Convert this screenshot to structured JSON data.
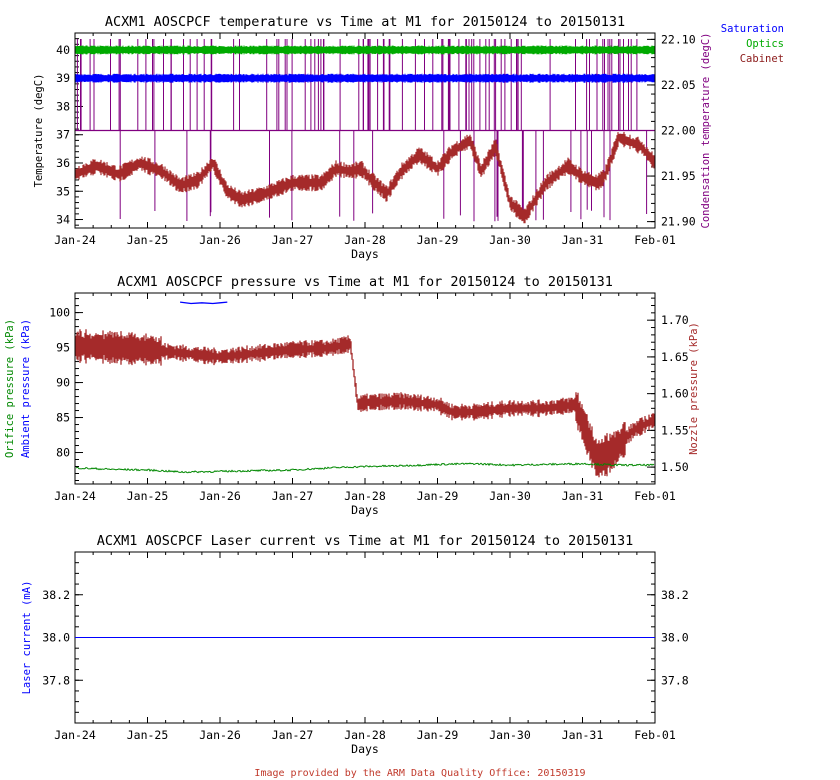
{
  "footer": "Image provided by the ARM Data Quality Office: 20150319",
  "x_axis": {
    "label": "Days",
    "ticks": [
      "Jan-24",
      "Jan-25",
      "Jan-26",
      "Jan-27",
      "Jan-28",
      "Jan-29",
      "Jan-30",
      "Jan-31",
      "Feb-01"
    ]
  },
  "legend": [
    {
      "name": "Saturation",
      "color": "#0000ff"
    },
    {
      "name": "Optics",
      "color": "#00aa00"
    },
    {
      "name": "Cabinet",
      "color": "#8b1a1a"
    }
  ],
  "colors": {
    "saturation": "#0000ff",
    "optics": "#00aa00",
    "cabinet": "#a52a2a",
    "condensation": "#800080",
    "orifice": "#008800",
    "ambient": "#0000ff",
    "nozzle": "#a52a2a",
    "laser": "#0000ff",
    "footer": "#c0392b"
  },
  "chart_data": [
    {
      "type": "line",
      "title": "ACXM1 AOSCPCF temperature vs Time at M1 for 20150124 to 20150131",
      "xlabel": "Days",
      "xlim": [
        0,
        8
      ],
      "ylabel": "Temperature (degC)",
      "ylim": [
        33.7,
        40.6
      ],
      "yticks": [
        34,
        35,
        36,
        37,
        38,
        39,
        40
      ],
      "y2label": "Condensation temperature (degC)",
      "y2lim": [
        21.893,
        22.107
      ],
      "y2ticks": [
        "21.90",
        "21.95",
        "22.00",
        "22.05",
        "22.10"
      ],
      "legend_position": "top-right, outside plot",
      "series": [
        {
          "name": "Saturation",
          "axis": "left",
          "x": [
            0,
            8
          ],
          "y": [
            39.0,
            39.0
          ]
        },
        {
          "name": "Optics",
          "axis": "left",
          "x": [
            0,
            8
          ],
          "y": [
            40.0,
            40.0
          ]
        },
        {
          "name": "Cabinet",
          "axis": "left",
          "x": [
            0,
            0.3,
            0.6,
            0.9,
            1.2,
            1.45,
            1.7,
            1.9,
            2.1,
            2.3,
            2.6,
            3.0,
            3.4,
            3.6,
            3.8,
            3.95,
            4.05,
            4.3,
            4.5,
            4.75,
            5.0,
            5.2,
            5.45,
            5.6,
            5.8,
            6.0,
            6.2,
            6.5,
            6.8,
            7.0,
            7.2,
            7.3,
            7.5,
            7.8,
            8.0
          ],
          "y": [
            35.6,
            35.9,
            35.6,
            36.0,
            35.7,
            35.2,
            35.4,
            36.0,
            35.0,
            34.7,
            34.9,
            35.3,
            35.3,
            35.8,
            35.7,
            35.8,
            35.5,
            34.9,
            35.7,
            36.3,
            35.8,
            36.4,
            36.8,
            35.7,
            36.6,
            34.6,
            34.1,
            35.3,
            35.9,
            35.5,
            35.3,
            35.5,
            36.9,
            36.6,
            36.0
          ]
        },
        {
          "name": "Condensation temperature",
          "axis": "right",
          "baseline": 22.0,
          "spikes_to": [
            22.1,
            21.9
          ]
        }
      ]
    },
    {
      "type": "line",
      "title": "ACXM1 AOSCPCF pressure vs Time at M1 for 20150124 to 20150131",
      "xlabel": "Days",
      "xlim": [
        0,
        8
      ],
      "ylabel": "Orifice pressure (kPa)  Ambient pressure (kPa)",
      "ylim": [
        75.5,
        102.8
      ],
      "yticks": [
        80,
        85,
        90,
        95,
        100
      ],
      "y2label": "Nozzle pressure (kPa)",
      "y2lim": [
        1.477,
        1.737
      ],
      "y2ticks": [
        "1.50",
        "1.55",
        "1.60",
        "1.65",
        "1.70"
      ],
      "series": [
        {
          "name": "Orifice pressure",
          "axis": "left",
          "x": [
            0,
            0.5,
            1.0,
            1.5,
            2.0,
            2.5,
            3.0,
            3.5,
            4.0,
            4.5,
            5.0,
            5.5,
            6.0,
            6.5,
            7.0,
            7.5,
            8.0
          ],
          "y": [
            77.8,
            77.6,
            77.5,
            77.2,
            77.3,
            77.4,
            77.5,
            77.8,
            78.0,
            78.1,
            78.3,
            78.4,
            78.2,
            78.3,
            78.4,
            78.2,
            78.2
          ]
        },
        {
          "name": "Ambient pressure",
          "axis": "left",
          "x": [
            1.45,
            1.6,
            1.75,
            1.9,
            2.0,
            2.1
          ],
          "y": [
            101.5,
            101.3,
            101.4,
            101.3,
            101.4,
            101.5
          ]
        },
        {
          "name": "Nozzle pressure",
          "axis": "right",
          "x": [
            0,
            0.5,
            1.0,
            1.5,
            2.0,
            2.5,
            3.0,
            3.5,
            3.8,
            3.9,
            4.0,
            4.5,
            5.0,
            5.2,
            5.5,
            6.0,
            6.5,
            6.9,
            7.0,
            7.2,
            7.4,
            7.7,
            8.0
          ],
          "y": [
            1.665,
            1.663,
            1.66,
            1.655,
            1.65,
            1.655,
            1.66,
            1.662,
            1.668,
            1.585,
            1.588,
            1.59,
            1.585,
            1.575,
            1.575,
            1.58,
            1.58,
            1.585,
            1.56,
            1.51,
            1.52,
            1.55,
            1.565
          ]
        }
      ]
    },
    {
      "type": "line",
      "title": "ACXM1 AOSCPCF Laser current vs Time at M1 for 20150124 to 20150131",
      "xlabel": "Days",
      "xlim": [
        0,
        8
      ],
      "ylabel": "Laser current (mA)",
      "ylim": [
        37.6,
        38.4
      ],
      "yticks": [
        "37.8",
        "38.0",
        "38.2"
      ],
      "y2ticks": [
        "37.8",
        "38.0",
        "38.2"
      ],
      "series": [
        {
          "name": "Laser current",
          "axis": "left",
          "x": [
            0,
            8
          ],
          "y": [
            38.0,
            38.0
          ]
        }
      ]
    }
  ]
}
